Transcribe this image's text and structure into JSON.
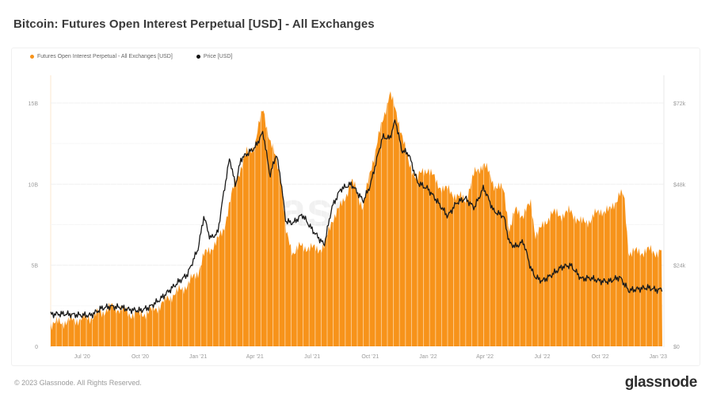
{
  "title": "Bitcoin: Futures Open Interest Perpetual [USD] - All Exchanges",
  "legend": [
    {
      "label": "Futures Open Interest Perpetual - All Exchanges [USD]",
      "color": "#f7931a"
    },
    {
      "label": "Price [USD]",
      "color": "#111111"
    }
  ],
  "footer": {
    "copyright": "© 2023 Glassnode. All Rights Reserved.",
    "logo": "glassnode"
  },
  "watermark": "glassnode",
  "colors": {
    "oi": "#f7931a",
    "price": "#1a1a1a",
    "grid": "#eeeeee"
  },
  "chart_data": {
    "type": "bar",
    "title": "Bitcoin: Futures Open Interest Perpetual [USD] - All Exchanges",
    "xlabel": "",
    "ylabel": "Futures Open Interest Perpetual [USD]",
    "y2label": "Price [USD]",
    "ylim": [
      0,
      16
    ],
    "y2lim": [
      0,
      76
    ],
    "yticks": [
      "0",
      "5B",
      "10B",
      "15B"
    ],
    "y2ticks": [
      "$0",
      "$24k",
      "$48k",
      "$72k"
    ],
    "xticks": [
      "Jul '20",
      "Oct '20",
      "Jan '21",
      "Apr '21",
      "Jul '21",
      "Oct '21",
      "Jan '22",
      "Apr '22",
      "Jul '22",
      "Oct '22",
      "Jan '23"
    ],
    "grid": true,
    "legend_position": "top-left",
    "series": [
      {
        "name": "Futures Open Interest Perpetual - All Exchanges [USD]",
        "unit": "billion USD",
        "type": "bar",
        "x": [
          "2020-05-15",
          "2020-06-01",
          "2020-06-15",
          "2020-07-01",
          "2020-07-15",
          "2020-08-01",
          "2020-08-15",
          "2020-09-01",
          "2020-09-15",
          "2020-10-01",
          "2020-10-15",
          "2020-11-01",
          "2020-11-15",
          "2020-12-01",
          "2020-12-15",
          "2021-01-01",
          "2021-01-10",
          "2021-01-20",
          "2021-02-01",
          "2021-02-10",
          "2021-02-20",
          "2021-03-01",
          "2021-03-10",
          "2021-03-20",
          "2021-04-01",
          "2021-04-14",
          "2021-04-25",
          "2021-05-05",
          "2021-05-12",
          "2021-05-20",
          "2021-06-01",
          "2021-06-15",
          "2021-07-01",
          "2021-07-20",
          "2021-08-01",
          "2021-08-15",
          "2021-09-01",
          "2021-09-07",
          "2021-09-20",
          "2021-10-01",
          "2021-10-15",
          "2021-10-21",
          "2021-11-01",
          "2021-11-10",
          "2021-11-20",
          "2021-12-01",
          "2021-12-15",
          "2022-01-01",
          "2022-01-15",
          "2022-02-01",
          "2022-02-15",
          "2022-03-01",
          "2022-03-15",
          "2022-03-30",
          "2022-04-15",
          "2022-05-01",
          "2022-05-10",
          "2022-05-20",
          "2022-06-01",
          "2022-06-13",
          "2022-06-20",
          "2022-07-01",
          "2022-07-15",
          "2022-08-01",
          "2022-08-15",
          "2022-09-01",
          "2022-09-15",
          "2022-10-01",
          "2022-10-15",
          "2022-11-01",
          "2022-11-08",
          "2022-11-15",
          "2022-12-01",
          "2022-12-15",
          "2023-01-01",
          "2023-01-08"
        ],
        "values": [
          1.4,
          1.5,
          1.6,
          1.7,
          1.8,
          2.1,
          2.4,
          2.3,
          2.0,
          2.0,
          2.1,
          2.5,
          3.0,
          3.4,
          3.8,
          4.6,
          5.6,
          6.0,
          6.5,
          7.2,
          8.8,
          10.2,
          11.0,
          12.0,
          12.4,
          14.8,
          12.5,
          11.6,
          10.5,
          7.0,
          5.8,
          6.2,
          6.0,
          6.1,
          7.8,
          8.6,
          10.1,
          9.8,
          8.5,
          10.8,
          13.0,
          13.9,
          15.7,
          14.5,
          13.2,
          11.2,
          10.4,
          11.0,
          10.0,
          9.6,
          9.3,
          9.0,
          10.6,
          11.3,
          10.0,
          9.6,
          7.2,
          8.4,
          8.1,
          8.8,
          6.9,
          7.3,
          8.2,
          8.1,
          8.3,
          7.6,
          7.8,
          8.4,
          8.3,
          9.4,
          9.2,
          5.8,
          5.8,
          5.9,
          5.8,
          5.9
        ]
      },
      {
        "name": "Price [USD]",
        "unit": "thousand USD",
        "type": "line",
        "x": [
          "2020-05-15",
          "2020-06-01",
          "2020-06-15",
          "2020-07-01",
          "2020-07-15",
          "2020-08-01",
          "2020-08-15",
          "2020-09-01",
          "2020-09-15",
          "2020-10-01",
          "2020-10-15",
          "2020-11-01",
          "2020-11-15",
          "2020-12-01",
          "2020-12-15",
          "2021-01-01",
          "2021-01-10",
          "2021-01-20",
          "2021-02-01",
          "2021-02-10",
          "2021-02-20",
          "2021-03-01",
          "2021-03-10",
          "2021-03-20",
          "2021-04-01",
          "2021-04-14",
          "2021-04-25",
          "2021-05-05",
          "2021-05-12",
          "2021-05-20",
          "2021-06-01",
          "2021-06-15",
          "2021-07-01",
          "2021-07-20",
          "2021-08-01",
          "2021-08-15",
          "2021-09-01",
          "2021-09-07",
          "2021-09-20",
          "2021-10-01",
          "2021-10-15",
          "2021-10-21",
          "2021-11-01",
          "2021-11-10",
          "2021-11-20",
          "2021-12-01",
          "2021-12-15",
          "2022-01-01",
          "2022-01-15",
          "2022-02-01",
          "2022-02-15",
          "2022-03-01",
          "2022-03-15",
          "2022-03-30",
          "2022-04-15",
          "2022-05-01",
          "2022-05-10",
          "2022-05-20",
          "2022-06-01",
          "2022-06-13",
          "2022-06-20",
          "2022-07-01",
          "2022-07-15",
          "2022-08-01",
          "2022-08-15",
          "2022-09-01",
          "2022-09-15",
          "2022-10-01",
          "2022-10-15",
          "2022-11-01",
          "2022-11-08",
          "2022-11-15",
          "2022-12-01",
          "2022-12-15",
          "2023-01-01",
          "2023-01-08"
        ],
        "values": [
          9.5,
          9.6,
          9.4,
          9.2,
          9.2,
          11.3,
          11.8,
          11.5,
          10.8,
          10.6,
          11.5,
          13.8,
          16.3,
          19.1,
          21.3,
          29.0,
          38.5,
          32.0,
          33.5,
          44.8,
          55.8,
          47.5,
          55.5,
          57.0,
          58.8,
          63.4,
          50.5,
          57.0,
          49.5,
          37.0,
          36.5,
          39.0,
          34.5,
          30.0,
          41.0,
          46.5,
          48.0,
          46.5,
          43.0,
          47.6,
          58.0,
          62.0,
          61.5,
          67.0,
          58.0,
          57.0,
          48.5,
          46.5,
          43.0,
          38.5,
          42.5,
          43.8,
          41.0,
          47.0,
          40.0,
          38.5,
          30.5,
          29.5,
          31.0,
          23.0,
          20.5,
          19.3,
          21.0,
          23.5,
          24.0,
          20.0,
          20.2,
          19.3,
          19.2,
          20.5,
          18.5,
          16.5,
          17.0,
          17.4,
          16.6,
          17.2
        ]
      }
    ]
  }
}
